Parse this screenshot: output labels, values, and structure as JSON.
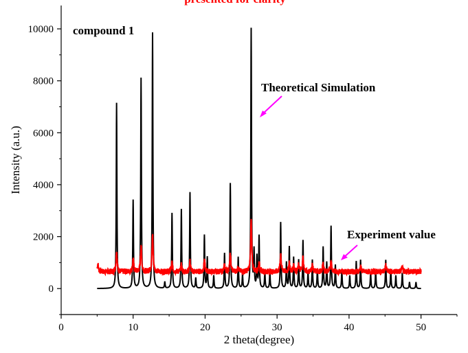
{
  "chart_data": {
    "type": "line",
    "title": "presented for clarity",
    "panel_label": "compound 1",
    "xlabel": "2 theta(degree)",
    "ylabel": "Intensity (a.u.)",
    "xlim": [
      0,
      55
    ],
    "ylim": [
      -1000,
      10900
    ],
    "x_ticks": [
      0,
      10,
      20,
      30,
      40,
      50
    ],
    "y_ticks": [
      0,
      2000,
      4000,
      6000,
      8000,
      10000
    ],
    "grid": false,
    "series": [
      {
        "name": "Theoretical Simulation",
        "color": "#000000",
        "baseline": 0,
        "range": [
          5,
          50
        ],
        "peaks": [
          [
            7.7,
            7150
          ],
          [
            10.0,
            3400
          ],
          [
            11.1,
            8100
          ],
          [
            12.7,
            9850
          ],
          [
            14.4,
            250
          ],
          [
            15.4,
            2900
          ],
          [
            16.7,
            3050
          ],
          [
            17.9,
            3700
          ],
          [
            18.7,
            400
          ],
          [
            19.9,
            2050
          ],
          [
            20.3,
            1200
          ],
          [
            21.2,
            500
          ],
          [
            22.7,
            1350
          ],
          [
            23.5,
            4050
          ],
          [
            24.6,
            1200
          ],
          [
            25.2,
            500
          ],
          [
            26.4,
            10000
          ],
          [
            26.8,
            1400
          ],
          [
            27.2,
            1200
          ],
          [
            27.5,
            2000
          ],
          [
            28.3,
            650
          ],
          [
            29.0,
            600
          ],
          [
            30.5,
            2550
          ],
          [
            31.3,
            1000
          ],
          [
            31.7,
            1600
          ],
          [
            32.3,
            1200
          ],
          [
            33.0,
            1100
          ],
          [
            33.6,
            1850
          ],
          [
            34.3,
            600
          ],
          [
            34.9,
            1100
          ],
          [
            35.6,
            750
          ],
          [
            36.4,
            1600
          ],
          [
            36.9,
            1000
          ],
          [
            37.5,
            2400
          ],
          [
            38.1,
            900
          ],
          [
            39.0,
            700
          ],
          [
            40.1,
            500
          ],
          [
            41.0,
            1050
          ],
          [
            41.6,
            1100
          ],
          [
            43.0,
            600
          ],
          [
            43.7,
            700
          ],
          [
            45.1,
            1100
          ],
          [
            45.8,
            700
          ],
          [
            46.5,
            500
          ],
          [
            47.4,
            600
          ],
          [
            48.4,
            250
          ],
          [
            49.3,
            250
          ]
        ]
      },
      {
        "name": "Experiment value",
        "color": "#ff0000",
        "baseline": 650,
        "range": [
          5,
          50
        ],
        "peaks": [
          [
            5.1,
            300
          ],
          [
            7.7,
            800
          ],
          [
            10.0,
            500
          ],
          [
            11.1,
            1050
          ],
          [
            12.7,
            1450
          ],
          [
            15.4,
            350
          ],
          [
            16.7,
            250
          ],
          [
            17.9,
            400
          ],
          [
            19.9,
            450
          ],
          [
            22.7,
            250
          ],
          [
            23.5,
            650
          ],
          [
            24.6,
            200
          ],
          [
            26.4,
            2000
          ],
          [
            27.5,
            350
          ],
          [
            30.5,
            700
          ],
          [
            31.7,
            350
          ],
          [
            32.3,
            300
          ],
          [
            33.0,
            250
          ],
          [
            33.6,
            550
          ],
          [
            34.9,
            250
          ],
          [
            36.4,
            300
          ],
          [
            37.5,
            450
          ],
          [
            41.6,
            200
          ],
          [
            45.1,
            250
          ],
          [
            47.4,
            200
          ]
        ]
      }
    ],
    "annotations": [
      {
        "text": "Theoretical Simulation",
        "arrow_color": "#ff00ff"
      },
      {
        "text": "Experiment value",
        "arrow_color": "#ff00ff"
      }
    ]
  }
}
